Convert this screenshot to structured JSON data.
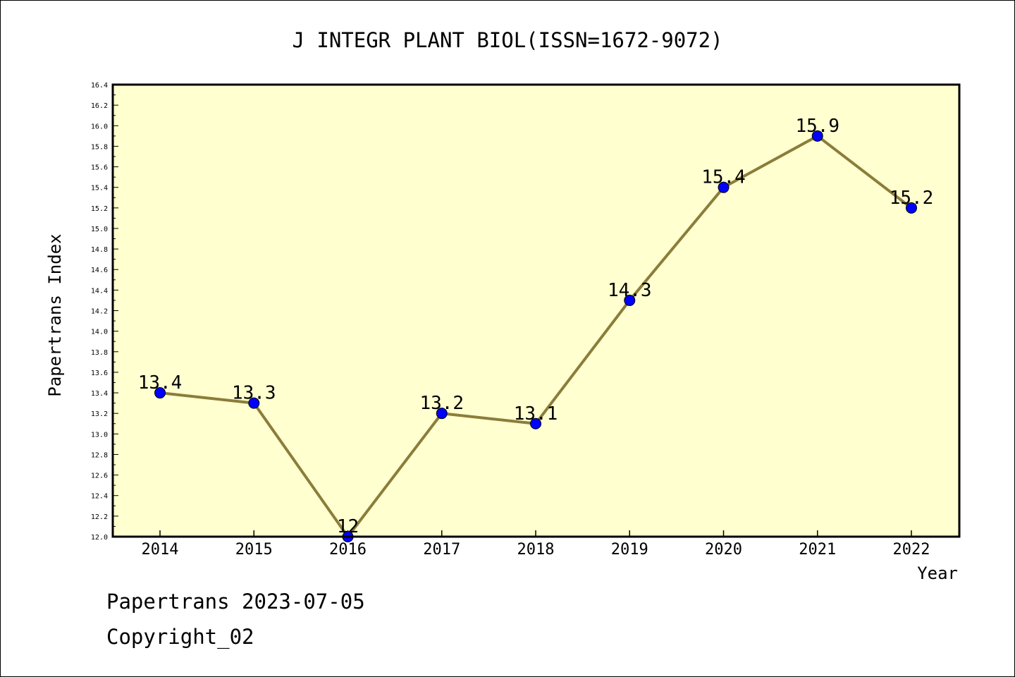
{
  "chart_data": {
    "type": "line",
    "title": "J INTEGR PLANT BIOL(ISSN=1672-9072)",
    "xlabel": "Year",
    "ylabel": "Papertrans Index",
    "x": [
      "2014",
      "2015",
      "2016",
      "2017",
      "2018",
      "2019",
      "2020",
      "2021",
      "2022"
    ],
    "series": [
      {
        "values": [
          13.4,
          13.3,
          12.0,
          13.2,
          13.1,
          14.3,
          15.4,
          15.9,
          15.2
        ],
        "labels": [
          "13.4",
          "13.3",
          "12",
          "13.2",
          "13.1",
          "14.3",
          "15.4",
          "15.9",
          "15.2"
        ]
      }
    ],
    "ylim": [
      12.0,
      16.4
    ],
    "y_ticks": [
      "12.0",
      "12.2",
      "12.4",
      "12.6",
      "12.8",
      "13.0",
      "13.2",
      "13.4",
      "13.6",
      "13.8",
      "14.0",
      "14.2",
      "14.4",
      "14.6",
      "14.8",
      "15.0",
      "15.2",
      "15.4",
      "15.6",
      "15.8",
      "16.0",
      "16.2",
      "16.4"
    ],
    "grid": false,
    "colors": {
      "plot_background": "#ffffd0",
      "line": "#8b7d3a",
      "marker": "#0000ff",
      "axis": "#000000"
    }
  },
  "footer": {
    "line1": "Papertrans 2023-07-05",
    "line2": "Copyright_02"
  }
}
